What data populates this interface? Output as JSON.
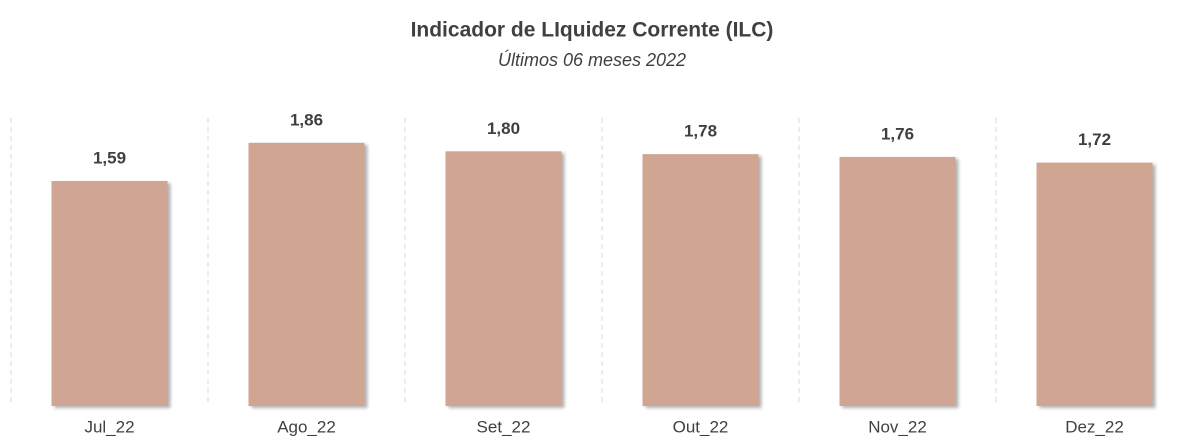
{
  "chart_data": {
    "type": "bar",
    "title": "Indicador de LIquidez Corrente (ILC)",
    "subtitle": "Últimos 06 meses 2022",
    "categories": [
      "Jul_22",
      "Ago_22",
      "Set_22",
      "Out_22",
      "Nov_22",
      "Dez_22"
    ],
    "values": [
      1.59,
      1.86,
      1.8,
      1.78,
      1.76,
      1.72
    ],
    "value_labels": [
      "1,59",
      "1,86",
      "1,80",
      "1,78",
      "1,76",
      "1,72"
    ],
    "color": "#d0a594",
    "ylim": [
      0,
      2
    ]
  }
}
